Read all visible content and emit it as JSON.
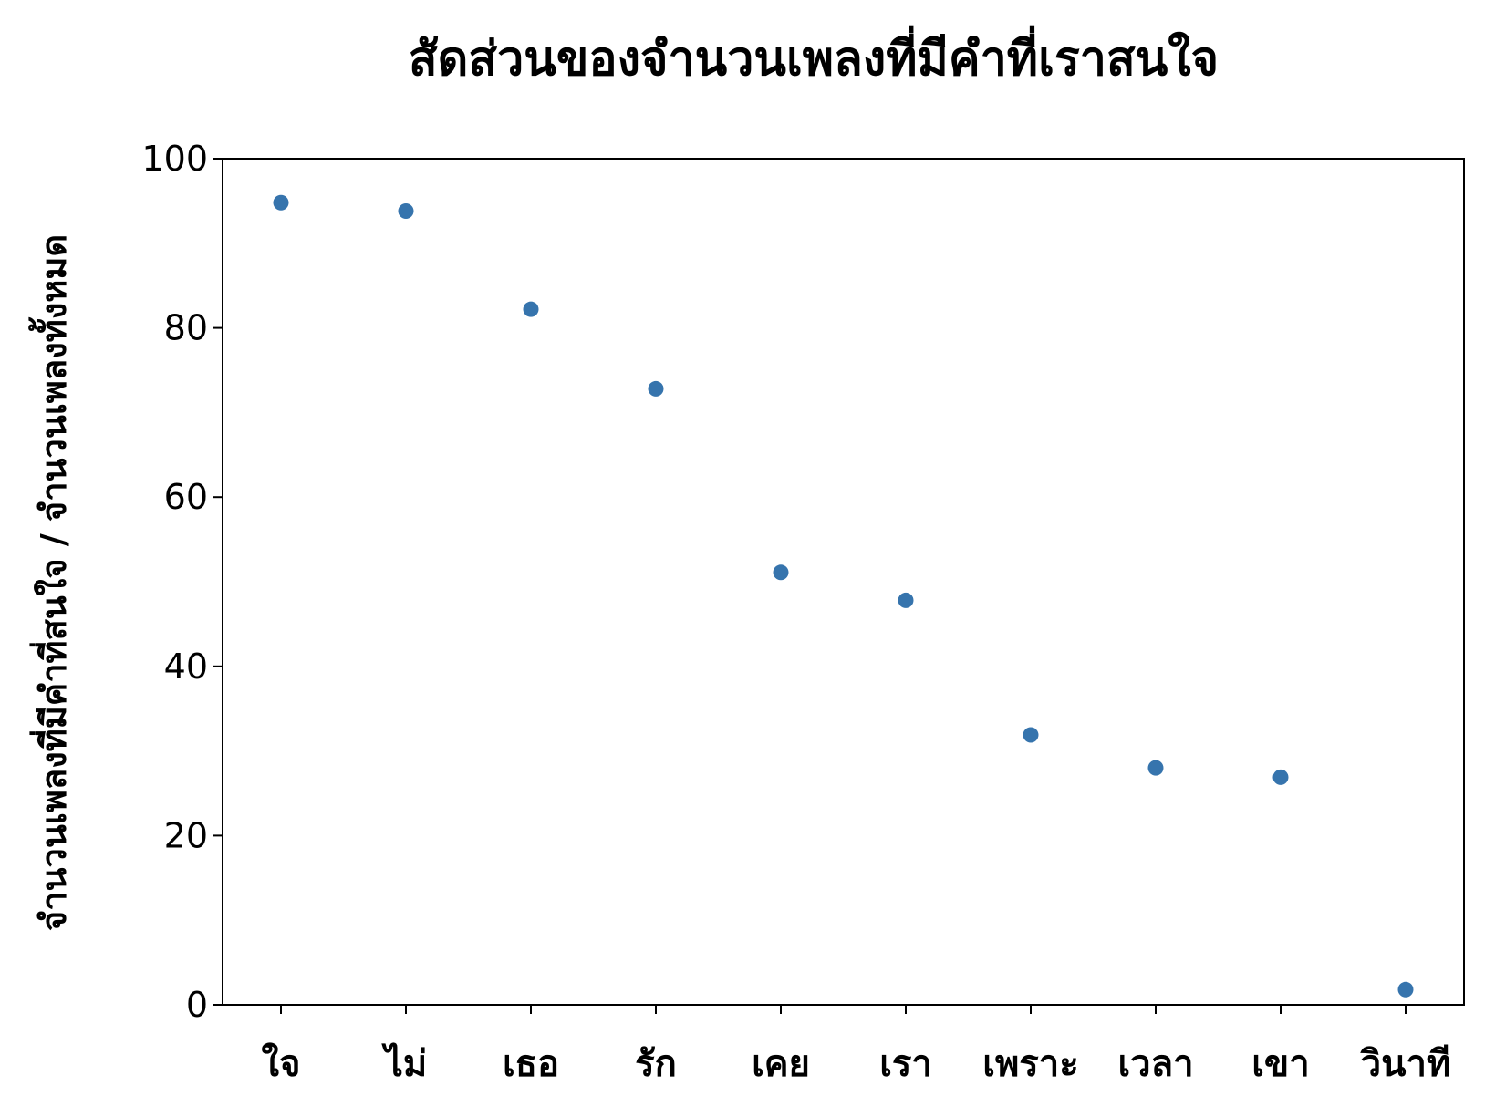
{
  "chart_data": {
    "type": "scatter",
    "title": "สัดส่วนของจำนวนเพลงที่มีคำที่เราสนใจ",
    "xlabel": "",
    "ylabel": "จำนวนเพลงที่มีคำที่สนใจ / จำนวนเพลงทั้งหมด",
    "categories": [
      "ใจ",
      "ไม่",
      "เธอ",
      "รัก",
      "เคย",
      "เรา",
      "เพราะ",
      "เวลา",
      "เขา",
      "วินาที"
    ],
    "values": [
      94.8,
      93.8,
      82.2,
      72.8,
      51.1,
      47.8,
      31.9,
      28.0,
      26.9,
      1.8
    ],
    "ylim": [
      0,
      100
    ],
    "yticks": [
      "0",
      "20",
      "40",
      "60",
      "80",
      "100"
    ],
    "grid": false,
    "marker_color": "#3674ad"
  }
}
